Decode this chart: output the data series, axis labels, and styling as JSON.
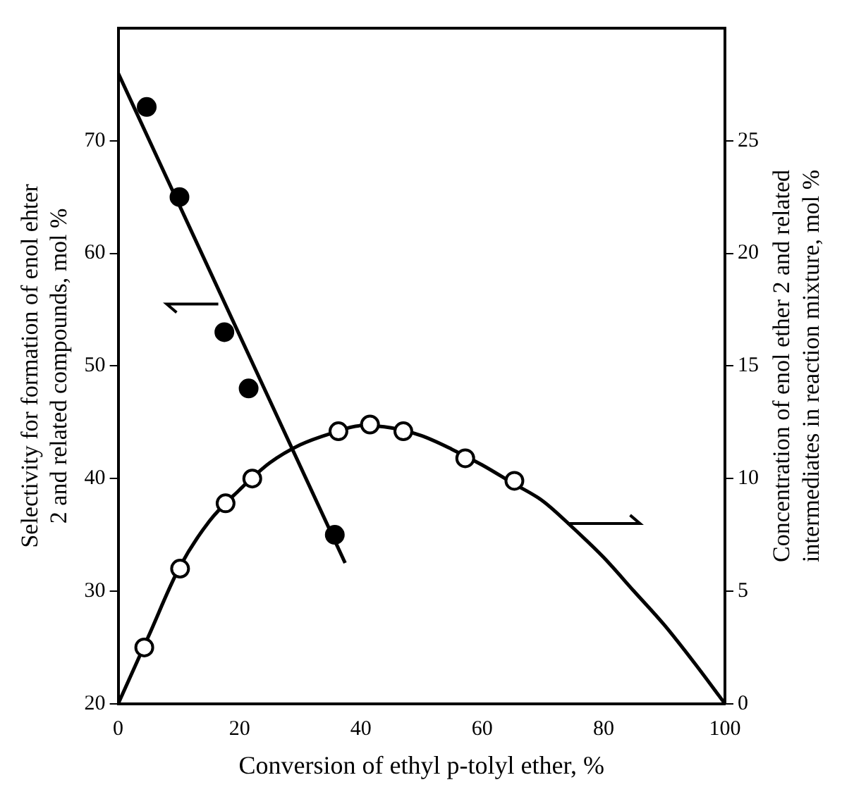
{
  "chart_data": {
    "type": "scatter",
    "xlabel": "Conversion of ethyl p-tolyl ether, %",
    "ylabel": "Selectivity for formation of enol ehter\n2 and related compounds, mol %",
    "y2label": "Concentration of enol ether 2 and related\nintermediates in reaction mixture, mol %",
    "xlim": [
      0,
      100
    ],
    "xticks": [
      0,
      20,
      40,
      60,
      80,
      100
    ],
    "ylim": [
      20,
      80
    ],
    "yticks": [
      20,
      30,
      40,
      50,
      60,
      70
    ],
    "y2lim": [
      0,
      30
    ],
    "y2ticks": [
      0,
      5,
      10,
      15,
      20,
      25
    ],
    "grid": false,
    "legend": false,
    "series": [
      {
        "marker": "circle",
        "color": "#000000",
        "x": [
          4.7,
          10.1,
          17.5,
          21.5,
          35.7
        ],
        "values": [
          73,
          65,
          53,
          48,
          35
        ]
      },
      {
        "type": "line",
        "marker": "none",
        "color": "#000000",
        "x": [
          0,
          37.4
        ],
        "values": [
          76,
          32.5
        ]
      },
      {
        "marker": "circle",
        "color": "#ffffff",
        "axis": "y2",
        "x": [
          4.3,
          10.2,
          17.7,
          22.1,
          36.3,
          41.5,
          47.0,
          57.2,
          65.3
        ],
        "values": [
          2.5,
          6,
          8.9,
          10,
          12.1,
          12.4,
          12.1,
          10.9,
          9.9
        ]
      },
      {
        "type": "line",
        "marker": "none",
        "color": "#000000",
        "axis": "y2",
        "x": [
          0,
          5,
          10,
          15,
          20,
          25,
          30,
          35,
          40,
          45,
          50,
          55,
          60,
          65,
          70,
          75,
          80,
          85,
          90,
          95,
          100
        ],
        "values": [
          0,
          3,
          6,
          8.1,
          9.5,
          10.7,
          11.5,
          12,
          12.35,
          12.25,
          11.9,
          11.3,
          10.6,
          9.8,
          9,
          7.8,
          6.5,
          5,
          3.5,
          1.8,
          0
        ]
      }
    ]
  }
}
